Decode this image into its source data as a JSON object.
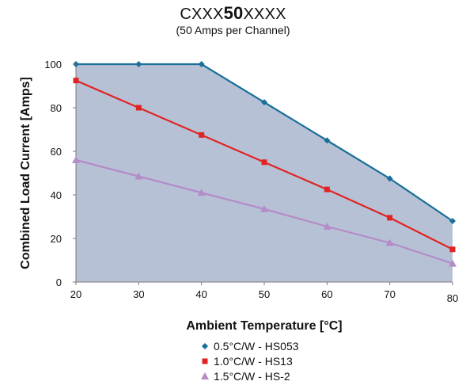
{
  "title": {
    "prefix": "CXXX",
    "bold": "50",
    "suffix": "XXXX"
  },
  "subtitle": "(50 Amps per Channel)",
  "chart_data": {
    "type": "line",
    "x": [
      20,
      30,
      40,
      50,
      60,
      70,
      80
    ],
    "x_tick_labels": [
      "20",
      "30",
      "40",
      "50",
      "60",
      "70",
      "80"
    ],
    "y_tick_labels": [
      "0",
      "20",
      "40",
      "60",
      "80",
      "100"
    ],
    "xlabel": "Ambient Temperature [°C]",
    "ylabel": "Combined Load Current [Amps]",
    "xlim": [
      20,
      80
    ],
    "ylim": [
      0,
      100
    ],
    "grid": false,
    "area_fill_series": 0,
    "area_fill_color": "#b7c1d6",
    "legend_position": "bottom",
    "series": [
      {
        "name": "0.5°C/W - HS053",
        "values": [
          100,
          100,
          100,
          82.5,
          65,
          47.5,
          28
        ],
        "color": "#1a6f9a",
        "marker": "diamond"
      },
      {
        "name": "1.0°C/W - HS13",
        "values": [
          92.5,
          80,
          67.5,
          55,
          42.5,
          29.5,
          15
        ],
        "color": "#e02424",
        "marker": "square"
      },
      {
        "name": "1.5°C/W - HS-2",
        "values": [
          56,
          48.5,
          41,
          33.5,
          25.5,
          18,
          8.5
        ],
        "color": "#b48cc8",
        "marker": "triangle"
      }
    ]
  }
}
